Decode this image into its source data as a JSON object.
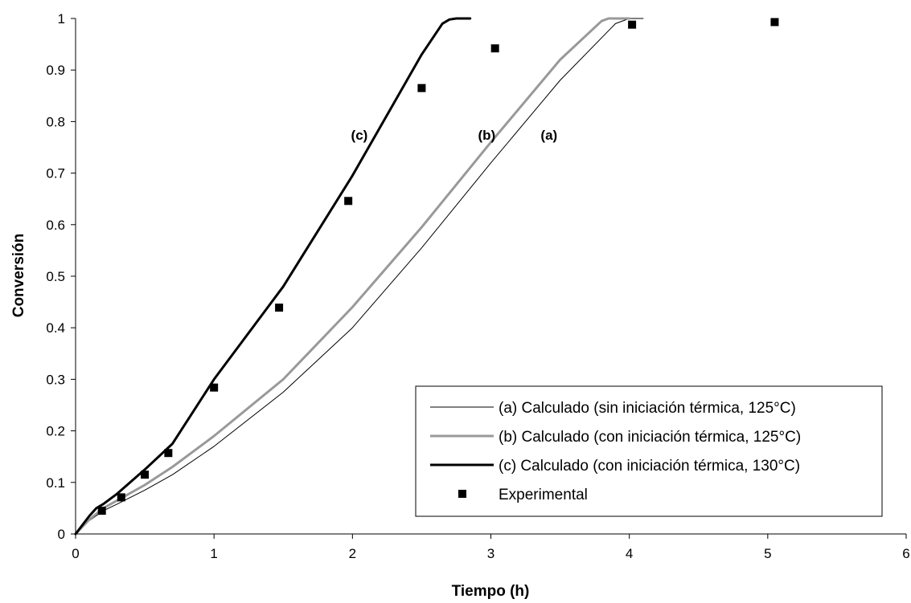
{
  "chart_data": {
    "type": "line",
    "xlabel": "Tiempo (h)",
    "ylabel": "Conversión",
    "xlim": [
      0,
      6
    ],
    "ylim": [
      0,
      1
    ],
    "xticks": [
      0,
      1,
      2,
      3,
      4,
      5,
      6
    ],
    "yticks": [
      0,
      0.1,
      0.2,
      0.3,
      0.4,
      0.5,
      0.6,
      0.7,
      0.8,
      0.9,
      1
    ],
    "ytick_labels": [
      "0",
      "0.1",
      "0.2",
      "0.3",
      "0.4",
      "0.5",
      "0.6",
      "0.7",
      "0.8",
      "0.9",
      "1"
    ],
    "grid": false,
    "legend_position": "bottom-right",
    "series": [
      {
        "name": "(a) Calculado (sin iniciación térmica, 125°C)",
        "style": "line",
        "color": "#000000",
        "width": 1,
        "x": [
          0,
          0.1,
          0.2,
          0.3,
          0.5,
          0.7,
          1.0,
          1.5,
          2.0,
          2.5,
          3.0,
          3.5,
          3.9,
          4.0,
          4.1
        ],
        "y": [
          0,
          0.026,
          0.045,
          0.058,
          0.085,
          0.115,
          0.17,
          0.275,
          0.4,
          0.555,
          0.72,
          0.88,
          0.99,
          1.0,
          1.0
        ]
      },
      {
        "name": "(b) Calculado (con iniciación térmica, 125°C)",
        "style": "line",
        "color": "#999999",
        "width": 3,
        "x": [
          0,
          0.1,
          0.2,
          0.3,
          0.5,
          0.7,
          1.0,
          1.5,
          2.0,
          2.5,
          3.0,
          3.5,
          3.8,
          3.85,
          4.0
        ],
        "y": [
          0,
          0.028,
          0.05,
          0.065,
          0.095,
          0.13,
          0.19,
          0.3,
          0.44,
          0.595,
          0.76,
          0.92,
          0.995,
          1.0,
          1.0
        ]
      },
      {
        "name": "(c) Calculado (con iniciación térmica, 130°C)",
        "style": "line",
        "color": "#000000",
        "width": 3,
        "x": [
          0,
          0.1,
          0.15,
          0.2,
          0.3,
          0.5,
          0.7,
          1.0,
          1.5,
          2.0,
          2.5,
          2.65,
          2.7,
          2.75,
          2.85
        ],
        "y": [
          0,
          0.035,
          0.05,
          0.058,
          0.078,
          0.125,
          0.175,
          0.3,
          0.48,
          0.695,
          0.93,
          0.99,
          0.998,
          1.0,
          1.0
        ]
      },
      {
        "name": "Experimental",
        "style": "markers",
        "color": "#000000",
        "x": [
          0.19,
          0.33,
          0.5,
          0.67,
          1.0,
          1.47,
          1.97,
          2.5,
          3.03,
          4.02,
          5.05
        ],
        "y": [
          0.045,
          0.071,
          0.115,
          0.157,
          0.284,
          0.439,
          0.646,
          0.865,
          0.942,
          0.988,
          0.993
        ]
      }
    ],
    "annotations": [
      {
        "text": "(c)",
        "x": 2.05,
        "y": 0.765
      },
      {
        "text": "(b)",
        "x": 2.97,
        "y": 0.765
      },
      {
        "text": "(a)",
        "x": 3.42,
        "y": 0.765
      }
    ]
  }
}
